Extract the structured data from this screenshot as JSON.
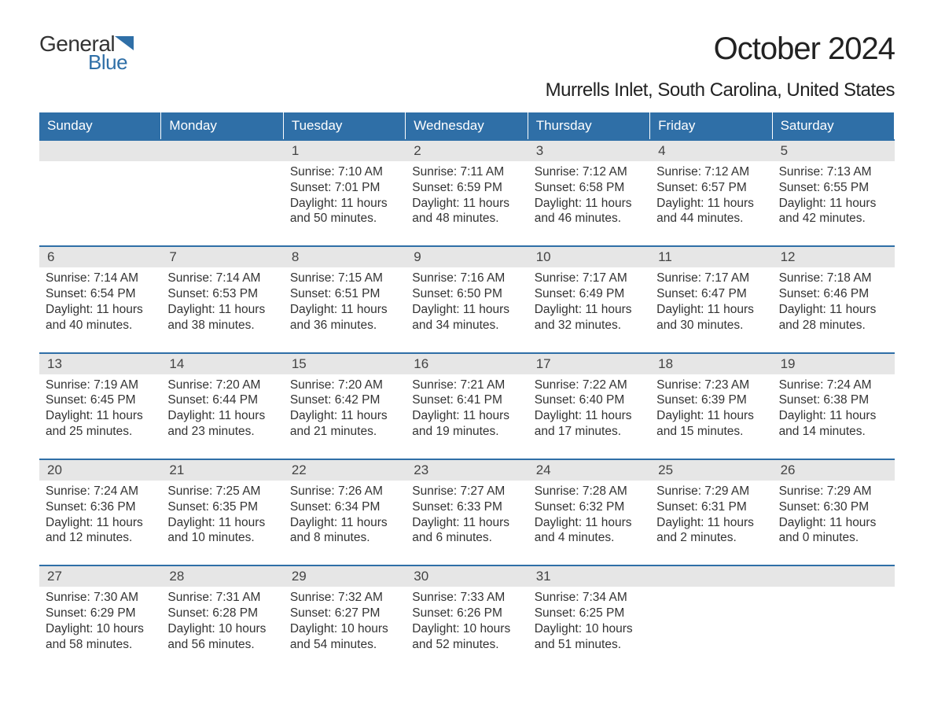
{
  "brand": {
    "text1": "General",
    "text2": "Blue",
    "icon_color": "#2f6fa7",
    "text1_color": "#333333",
    "text2_color": "#2f6fa7"
  },
  "header": {
    "title": "October 2024",
    "subtitle": "Murrells Inlet, South Carolina, United States"
  },
  "colors": {
    "header_bg": "#2f6fa7",
    "header_text": "#ffffff",
    "daynum_bg": "#e6e6e6",
    "cell_border": "#2f6fa7",
    "body_text": "#333333",
    "background": "#ffffff"
  },
  "typography": {
    "title_fontsize": 40,
    "subtitle_fontsize": 24,
    "dayheader_fontsize": 17,
    "daynum_fontsize": 17,
    "body_fontsize": 15.5,
    "font_family": "Arial, Helvetica, sans-serif"
  },
  "calendar": {
    "day_names": [
      "Sunday",
      "Monday",
      "Tuesday",
      "Wednesday",
      "Thursday",
      "Friday",
      "Saturday"
    ],
    "leading_blanks": 2,
    "trailing_blanks": 2,
    "days": [
      {
        "n": 1,
        "sunrise": "7:10 AM",
        "sunset": "7:01 PM",
        "daylight": "11 hours and 50 minutes."
      },
      {
        "n": 2,
        "sunrise": "7:11 AM",
        "sunset": "6:59 PM",
        "daylight": "11 hours and 48 minutes."
      },
      {
        "n": 3,
        "sunrise": "7:12 AM",
        "sunset": "6:58 PM",
        "daylight": "11 hours and 46 minutes."
      },
      {
        "n": 4,
        "sunrise": "7:12 AM",
        "sunset": "6:57 PM",
        "daylight": "11 hours and 44 minutes."
      },
      {
        "n": 5,
        "sunrise": "7:13 AM",
        "sunset": "6:55 PM",
        "daylight": "11 hours and 42 minutes."
      },
      {
        "n": 6,
        "sunrise": "7:14 AM",
        "sunset": "6:54 PM",
        "daylight": "11 hours and 40 minutes."
      },
      {
        "n": 7,
        "sunrise": "7:14 AM",
        "sunset": "6:53 PM",
        "daylight": "11 hours and 38 minutes."
      },
      {
        "n": 8,
        "sunrise": "7:15 AM",
        "sunset": "6:51 PM",
        "daylight": "11 hours and 36 minutes."
      },
      {
        "n": 9,
        "sunrise": "7:16 AM",
        "sunset": "6:50 PM",
        "daylight": "11 hours and 34 minutes."
      },
      {
        "n": 10,
        "sunrise": "7:17 AM",
        "sunset": "6:49 PM",
        "daylight": "11 hours and 32 minutes."
      },
      {
        "n": 11,
        "sunrise": "7:17 AM",
        "sunset": "6:47 PM",
        "daylight": "11 hours and 30 minutes."
      },
      {
        "n": 12,
        "sunrise": "7:18 AM",
        "sunset": "6:46 PM",
        "daylight": "11 hours and 28 minutes."
      },
      {
        "n": 13,
        "sunrise": "7:19 AM",
        "sunset": "6:45 PM",
        "daylight": "11 hours and 25 minutes."
      },
      {
        "n": 14,
        "sunrise": "7:20 AM",
        "sunset": "6:44 PM",
        "daylight": "11 hours and 23 minutes."
      },
      {
        "n": 15,
        "sunrise": "7:20 AM",
        "sunset": "6:42 PM",
        "daylight": "11 hours and 21 minutes."
      },
      {
        "n": 16,
        "sunrise": "7:21 AM",
        "sunset": "6:41 PM",
        "daylight": "11 hours and 19 minutes."
      },
      {
        "n": 17,
        "sunrise": "7:22 AM",
        "sunset": "6:40 PM",
        "daylight": "11 hours and 17 minutes."
      },
      {
        "n": 18,
        "sunrise": "7:23 AM",
        "sunset": "6:39 PM",
        "daylight": "11 hours and 15 minutes."
      },
      {
        "n": 19,
        "sunrise": "7:24 AM",
        "sunset": "6:38 PM",
        "daylight": "11 hours and 14 minutes."
      },
      {
        "n": 20,
        "sunrise": "7:24 AM",
        "sunset": "6:36 PM",
        "daylight": "11 hours and 12 minutes."
      },
      {
        "n": 21,
        "sunrise": "7:25 AM",
        "sunset": "6:35 PM",
        "daylight": "11 hours and 10 minutes."
      },
      {
        "n": 22,
        "sunrise": "7:26 AM",
        "sunset": "6:34 PM",
        "daylight": "11 hours and 8 minutes."
      },
      {
        "n": 23,
        "sunrise": "7:27 AM",
        "sunset": "6:33 PM",
        "daylight": "11 hours and 6 minutes."
      },
      {
        "n": 24,
        "sunrise": "7:28 AM",
        "sunset": "6:32 PM",
        "daylight": "11 hours and 4 minutes."
      },
      {
        "n": 25,
        "sunrise": "7:29 AM",
        "sunset": "6:31 PM",
        "daylight": "11 hours and 2 minutes."
      },
      {
        "n": 26,
        "sunrise": "7:29 AM",
        "sunset": "6:30 PM",
        "daylight": "11 hours and 0 minutes."
      },
      {
        "n": 27,
        "sunrise": "7:30 AM",
        "sunset": "6:29 PM",
        "daylight": "10 hours and 58 minutes."
      },
      {
        "n": 28,
        "sunrise": "7:31 AM",
        "sunset": "6:28 PM",
        "daylight": "10 hours and 56 minutes."
      },
      {
        "n": 29,
        "sunrise": "7:32 AM",
        "sunset": "6:27 PM",
        "daylight": "10 hours and 54 minutes."
      },
      {
        "n": 30,
        "sunrise": "7:33 AM",
        "sunset": "6:26 PM",
        "daylight": "10 hours and 52 minutes."
      },
      {
        "n": 31,
        "sunrise": "7:34 AM",
        "sunset": "6:25 PM",
        "daylight": "10 hours and 51 minutes."
      }
    ],
    "labels": {
      "sunrise_prefix": "Sunrise: ",
      "sunset_prefix": "Sunset: ",
      "daylight_prefix": "Daylight: "
    }
  }
}
